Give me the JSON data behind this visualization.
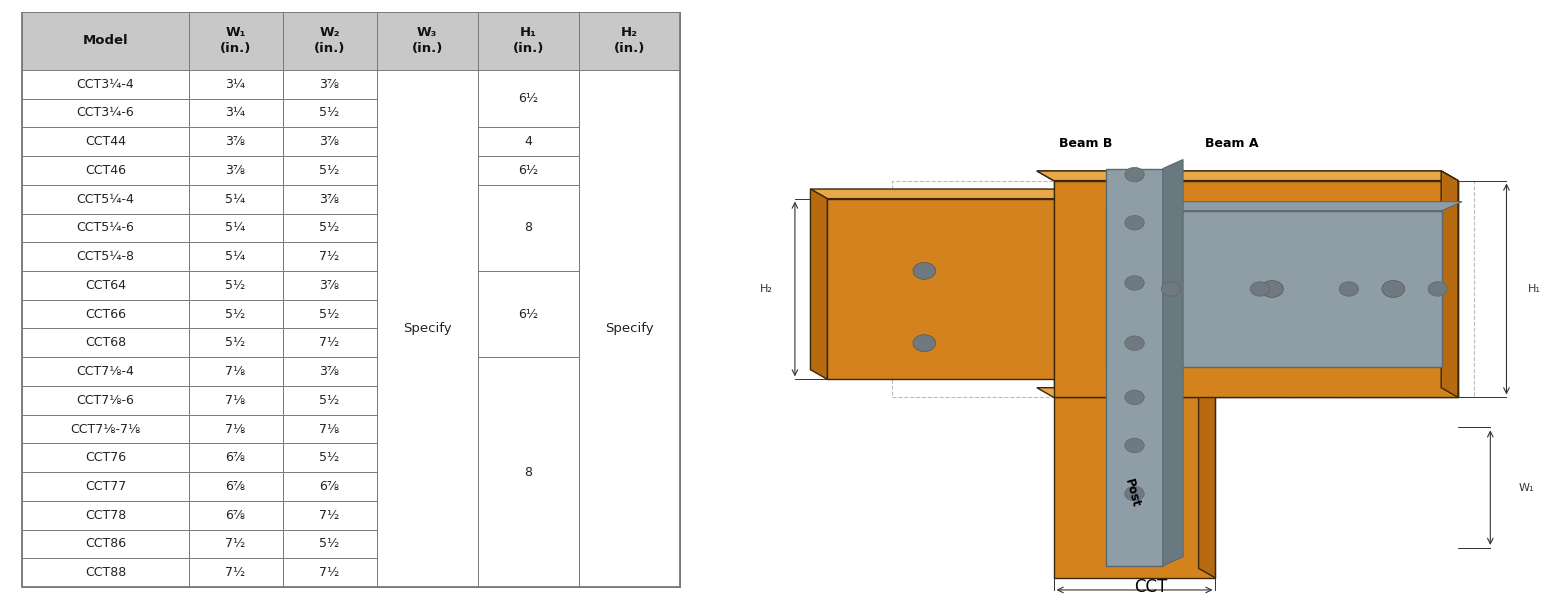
{
  "headers": [
    "Model",
    "W₁\n(in.)",
    "W₂\n(in.)",
    "W₃\n(in.)",
    "H₁\n(in.)",
    "H₂\n(in.)"
  ],
  "rows": [
    [
      "CCT3¼-4",
      "3¼",
      "3⅞",
      "",
      "",
      ""
    ],
    [
      "CCT3¼-6",
      "3¼",
      "5½",
      "",
      "6½",
      ""
    ],
    [
      "CCT44",
      "3⅞",
      "3⅞",
      "",
      "4",
      ""
    ],
    [
      "CCT46",
      "3⅞",
      "5½",
      "",
      "6½",
      ""
    ],
    [
      "CCT5¼-4",
      "5¼",
      "3⅞",
      "",
      "",
      ""
    ],
    [
      "CCT5¼-6",
      "5¼",
      "5½",
      "",
      "8",
      ""
    ],
    [
      "CCT5¼-8",
      "5¼",
      "7½",
      "",
      "",
      ""
    ],
    [
      "CCT64",
      "5½",
      "3⅞",
      "",
      "",
      ""
    ],
    [
      "CCT66",
      "5½",
      "5½",
      "",
      "6½",
      ""
    ],
    [
      "CCT68",
      "5½",
      "7½",
      "",
      "",
      ""
    ],
    [
      "CCT7⅛-4",
      "7⅛",
      "3⅞",
      "",
      "",
      ""
    ],
    [
      "CCT7⅛-6",
      "7⅛",
      "5½",
      "",
      "",
      ""
    ],
    [
      "CCT7⅛-7⅛",
      "7⅛",
      "7⅛",
      "",
      "",
      ""
    ],
    [
      "CCT76",
      "6⅞",
      "5½",
      "",
      "",
      ""
    ],
    [
      "CCT77",
      "6⅞",
      "6⅞",
      "",
      "8",
      ""
    ],
    [
      "CCT78",
      "6⅞",
      "7½",
      "",
      "",
      ""
    ],
    [
      "CCT86",
      "7½",
      "5½",
      "",
      "",
      ""
    ],
    [
      "CCT88",
      "7½",
      "7½",
      "",
      "",
      ""
    ]
  ],
  "h1_groups": [
    [
      0,
      2,
      "6½"
    ],
    [
      2,
      1,
      "4"
    ],
    [
      3,
      1,
      "6½"
    ],
    [
      4,
      3,
      "8"
    ],
    [
      7,
      3,
      "6½"
    ],
    [
      10,
      8,
      "8"
    ]
  ],
  "w3_text": "Specify",
  "h2_text": "Specify",
  "header_bg": "#c8c8c8",
  "border_color": "#7a7a7a",
  "text_color": "#222222",
  "header_text_color": "#111111",
  "figure_bg": "#ffffff",
  "font_size": 9.0,
  "header_font_size": 9.5,
  "beam_color": "#D4821E",
  "beam_top_color": "#E8A84A",
  "beam_side_color": "#B86A10",
  "beam_dark_color": "#A05808",
  "metal_color": "#8E9DA6",
  "metal_edge": "#5A6870",
  "metal_dark": "#6A7880",
  "hole_color": "#707880",
  "outline_color": "#3A2808",
  "dim_color": "#333333",
  "dash_color": "#AAAAAA"
}
